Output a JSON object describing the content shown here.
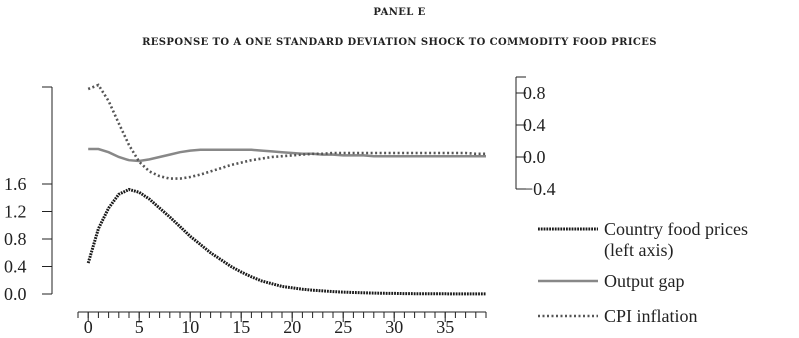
{
  "chart_data": {
    "type": "line",
    "panel_label": "PANEL E",
    "title": "RESPONSE TO A ONE STANDARD DEVIATION SHOCK TO COMMODITY FOOD PRICES",
    "x_ticks": [
      "0",
      "5",
      "10",
      "15",
      "20",
      "25",
      "30",
      "35"
    ],
    "xlim": [
      -1,
      39
    ],
    "left_axis": {
      "ylim": [
        0.0,
        1.6
      ],
      "ticks": [
        "0.0",
        "0.4",
        "0.8",
        "1.2",
        "1.6"
      ]
    },
    "right_axis": {
      "ylim": [
        -0.4,
        1.0
      ],
      "ticks": [
        "−0.4",
        "0.0",
        "0.4",
        "0.8"
      ]
    },
    "series": [
      {
        "name": "Country food prices",
        "name_line2": "(left axis)",
        "axis": "left",
        "style": "dotted-dense",
        "color": "#1a1a1a",
        "x": [
          0,
          1,
          2,
          3,
          4,
          5,
          6,
          7,
          8,
          9,
          10,
          11,
          12,
          13,
          14,
          15,
          16,
          17,
          18,
          19,
          20,
          21,
          22,
          23,
          24,
          25,
          26,
          27,
          28,
          29,
          30,
          31,
          32,
          33,
          34,
          35,
          36,
          37,
          38,
          39
        ],
        "values": [
          0.45,
          0.95,
          1.25,
          1.45,
          1.52,
          1.48,
          1.38,
          1.25,
          1.12,
          0.98,
          0.84,
          0.72,
          0.6,
          0.5,
          0.4,
          0.32,
          0.25,
          0.19,
          0.15,
          0.11,
          0.09,
          0.07,
          0.055,
          0.045,
          0.035,
          0.028,
          0.022,
          0.017,
          0.013,
          0.01,
          0.008,
          0.006,
          0.005,
          0.004,
          0.003,
          0.003,
          0.002,
          0.002,
          0.002,
          0.002
        ]
      },
      {
        "name": "Output gap",
        "axis": "right",
        "style": "solid",
        "color": "#888888",
        "x": [
          0,
          1,
          2,
          3,
          4,
          5,
          6,
          7,
          8,
          9,
          10,
          11,
          12,
          13,
          14,
          15,
          16,
          17,
          18,
          19,
          20,
          21,
          22,
          23,
          24,
          25,
          26,
          27,
          28,
          29,
          30,
          31,
          32,
          33,
          34,
          35,
          36,
          37,
          38,
          39
        ],
        "values": [
          0.1,
          0.1,
          0.06,
          0.0,
          -0.04,
          -0.05,
          -0.03,
          0.0,
          0.03,
          0.06,
          0.08,
          0.09,
          0.09,
          0.09,
          0.09,
          0.09,
          0.09,
          0.08,
          0.07,
          0.06,
          0.05,
          0.04,
          0.04,
          0.03,
          0.03,
          0.02,
          0.02,
          0.02,
          0.01,
          0.01,
          0.01,
          0.01,
          0.01,
          0.01,
          0.01,
          0.01,
          0.01,
          0.01,
          0.01,
          0.01
        ]
      },
      {
        "name": "CPI inflation",
        "axis": "right",
        "style": "dotted",
        "color": "#555555",
        "x": [
          0,
          1,
          2,
          3,
          4,
          5,
          6,
          7,
          8,
          9,
          10,
          11,
          12,
          13,
          14,
          15,
          16,
          17,
          18,
          19,
          20,
          21,
          22,
          23,
          24,
          25,
          26,
          27,
          28,
          29,
          30,
          31,
          32,
          33,
          34,
          35,
          36,
          37,
          38,
          39
        ],
        "values": [
          0.85,
          0.9,
          0.7,
          0.42,
          0.15,
          -0.06,
          -0.18,
          -0.24,
          -0.27,
          -0.27,
          -0.25,
          -0.22,
          -0.18,
          -0.14,
          -0.1,
          -0.07,
          -0.04,
          -0.02,
          0.0,
          0.01,
          0.02,
          0.03,
          0.04,
          0.04,
          0.05,
          0.05,
          0.05,
          0.05,
          0.05,
          0.05,
          0.05,
          0.05,
          0.05,
          0.05,
          0.05,
          0.05,
          0.05,
          0.05,
          0.04,
          0.04
        ]
      }
    ]
  }
}
